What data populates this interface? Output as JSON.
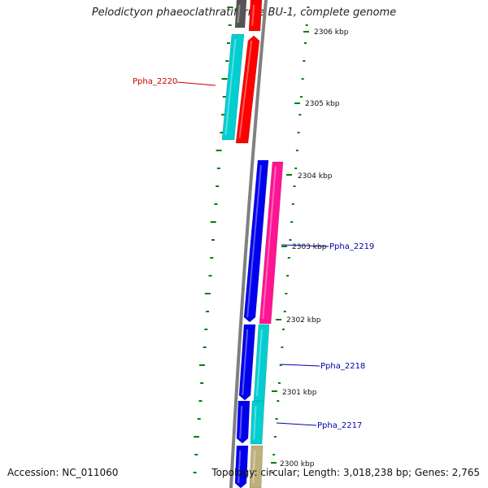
{
  "title": "Pelodictyon phaeoclathratiforme BU-1, complete genome",
  "accession": "Accession: NC_011060",
  "summary": "Topology: circular; Length: 3,018,238 bp; Genes: 2,765",
  "ticks": [
    "2306 kbp",
    "2305 kbp",
    "2304 kbp",
    "2303 kbp",
    "2302 kbp",
    "2301 kbp",
    "2300 kbp"
  ],
  "gene_labels": [
    {
      "text": "Ppha_2220",
      "color": "#cc0000"
    },
    {
      "text": "Ppha_2219",
      "color": "#0000aa"
    },
    {
      "text": "Ppha_2218",
      "color": "#0000aa"
    },
    {
      "text": "Ppha_2217",
      "color": "#0000aa"
    }
  ],
  "colors": {
    "backbone": "#808080",
    "tick": "#008000",
    "cyan": "#00ced1",
    "red": "#ff0000",
    "blue": "#0000ee",
    "pink": "#ff1493",
    "tan": "#bdb07a",
    "grey_feature": "#555555"
  }
}
